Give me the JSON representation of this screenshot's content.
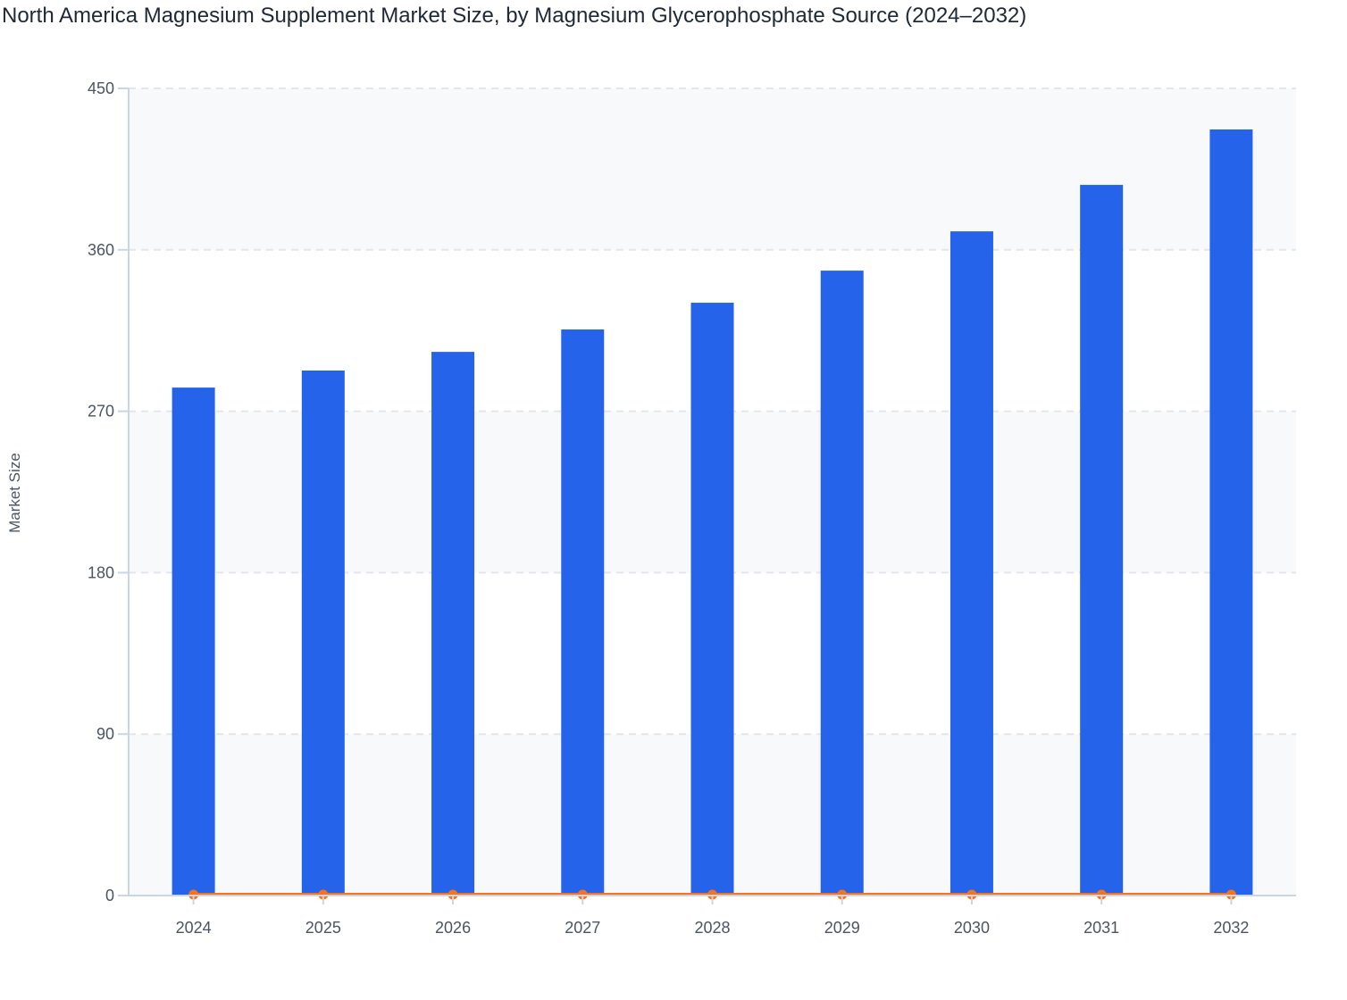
{
  "chart_data": {
    "type": "bar",
    "title": "North America Magnesium Supplement Market Size, by Magnesium Glycerophosphate Source (2024–2032)",
    "xlabel": "",
    "ylabel": "Market Size",
    "ylim": [
      0,
      450
    ],
    "yticks": [
      "0",
      "90",
      "180",
      "270",
      "360",
      "450"
    ],
    "grid": true,
    "categories": [
      "2024",
      "2025",
      "2026",
      "2027",
      "2028",
      "2029",
      "2030",
      "2031",
      "2032"
    ],
    "series": [
      {
        "type": "bar",
        "color": "#2563eb",
        "values": [
          283.2,
          292.7,
          303.1,
          315.6,
          330.5,
          348.4,
          370.3,
          396.2,
          427.1
        ]
      },
      {
        "type": "line",
        "color": "#f97316",
        "values": [
          0.5,
          0.5,
          0.5,
          0.5,
          0.5,
          0.5,
          0.5,
          0.5,
          0.5
        ]
      }
    ]
  }
}
